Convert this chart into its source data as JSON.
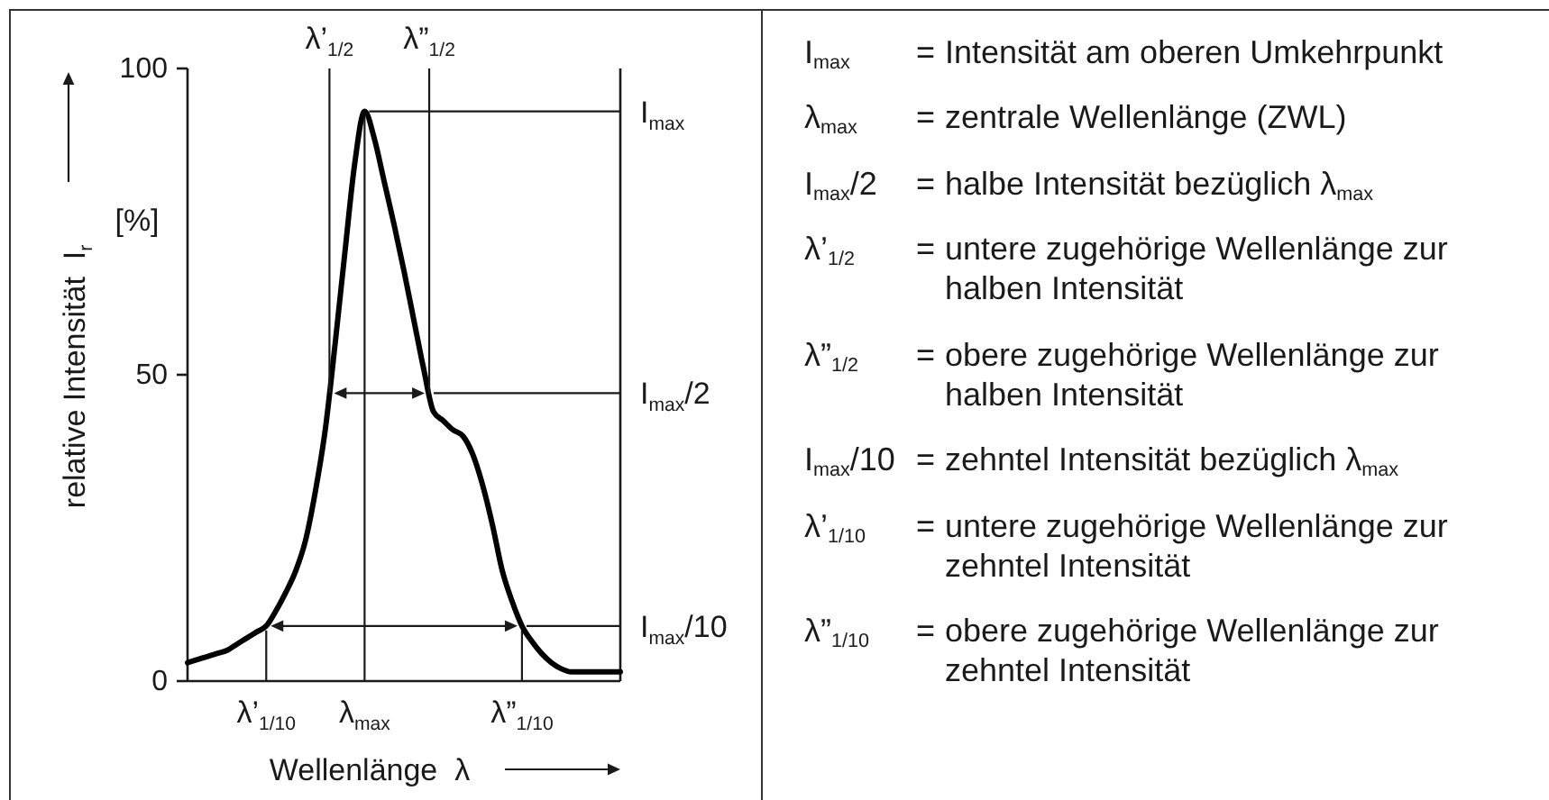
{
  "chart_data": [
    {
      "type": "line",
      "xlabel": "Wellenlänge  λ",
      "ylabel": "relative Intensität  I$_{r}$",
      "categories": [
        null,
        null,
        null,
        null,
        null,
        null,
        null,
        null,
        "λ’$_{1/10}$",
        null,
        null,
        null,
        null,
        null,
        null,
        null,
        null,
        null,
        "λ$_{max}$",
        null,
        null,
        null,
        null,
        null,
        null,
        null,
        null,
        null,
        null,
        null,
        null,
        null,
        null,
        null,
        "λ”$_{1/10}$",
        null,
        null,
        null,
        null,
        null,
        null,
        null,
        null,
        null,
        null
      ],
      "values": [
        3,
        3.5,
        4,
        4.5,
        5,
        6,
        7,
        8,
        9,
        11.5,
        14.5,
        18,
        23,
        31,
        41,
        55,
        70,
        84.5,
        93,
        88.5,
        81.5,
        74.5,
        67,
        59,
        51,
        44,
        42.5,
        41,
        40,
        37,
        32,
        25.5,
        18,
        13,
        9,
        6.5,
        4.5,
        3,
        2,
        1.5,
        1.5,
        1.5,
        1.5,
        1.5,
        1.5
      ],
      "color": "#000000",
      "ylim": [
        0,
        100
      ],
      "yticks": [
        0,
        50,
        100
      ],
      "ref_lines": [
        {
          "axis": "y",
          "value": 93,
          "label": "I$_{max}$"
        },
        {
          "axis": "y",
          "value": 47,
          "label": "I$_{max}$/2"
        },
        {
          "axis": "y",
          "value": 9,
          "label": "I$_{max}$/10"
        },
        {
          "axis": "x",
          "value": "λ’$_{1/10}$"
        },
        {
          "axis": "x",
          "value": "λ”$_{1/10}$"
        }
      ],
      "annotations": [
        "λ’$_{1/2}$",
        "λ”$_{1/2}$",
        "[%]"
      ]
    },
    {
      "type": "other",
      "annotations": [
        "I$_{max}$ = Intensität am oberen Umkehrpunkt",
        "λ$_{max}$ = zentrale Wellenlänge (ZWL)",
        "I$_{max}$/2 = halbe Intensität bezüglich λ$_{max}$",
        "λ’$_{1/2}$ = untere zugehörige Wellenlänge zur halben Intensität",
        "λ”$_{1/2}$ = obere zugehörige Wellenlänge zur halben Intensität",
        "I$_{max}$/10 = zehntel Intensität bezüglich λ$_{max}$",
        "λ’$_{1/10}$ = untere zugehörige Wellenlänge zur zehntel Intensität",
        "λ”$_{1/10}$ = obere zugehörige Wellenlänge zur zehntel Intensität"
      ]
    }
  ]
}
